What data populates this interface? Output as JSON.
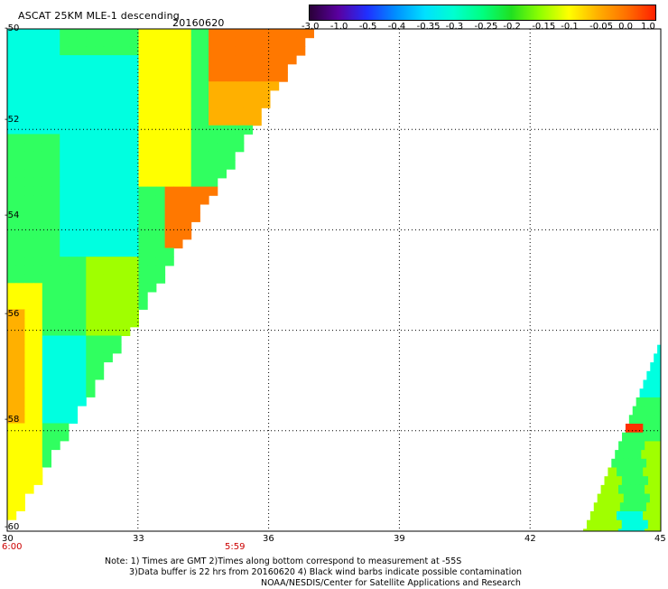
{
  "header": {
    "title": "ASCAT 25KM MLE-1 descending",
    "date": "20160620"
  },
  "colorbar": {
    "labels": [
      "-3.0",
      "-1.0",
      "-0.5",
      "-0.4",
      "-0.35",
      "-0.3",
      "-0.25",
      "-0.2",
      "-0.15",
      "-0.1",
      "-0.05",
      "0.0",
      "1.0"
    ],
    "colors": [
      "#2a0038",
      "#5a00a0",
      "#2030ff",
      "#0090ff",
      "#00e0ff",
      "#00ffd0",
      "#00ff80",
      "#20e020",
      "#90ff00",
      "#ffff00",
      "#ffb000",
      "#ff7000",
      "#ff2000"
    ]
  },
  "map": {
    "lat_labels": [
      "-50",
      "-52",
      "-54",
      "-56",
      "-58",
      "-60"
    ],
    "lon_labels": [
      "30",
      "33",
      "36",
      "39",
      "42",
      "45"
    ],
    "lat_range": [
      -60,
      -50
    ],
    "lon_range": [
      30,
      45
    ],
    "time_labels": [
      {
        "text": "6:00",
        "lon": 30
      },
      {
        "text": "5:59",
        "lon": 35
      }
    ],
    "grid": true
  },
  "footer": {
    "note_1": "Note: 1) Times are GMT 2)Times along bottom correspond to measurement at -55S",
    "note_2": "3)Data buffer is 22 hrs from 20160620 4) Black wind barbs indicate possible contamination",
    "note_3": "NOAA/NESDIS/Center for Satellite Applications and Research"
  }
}
